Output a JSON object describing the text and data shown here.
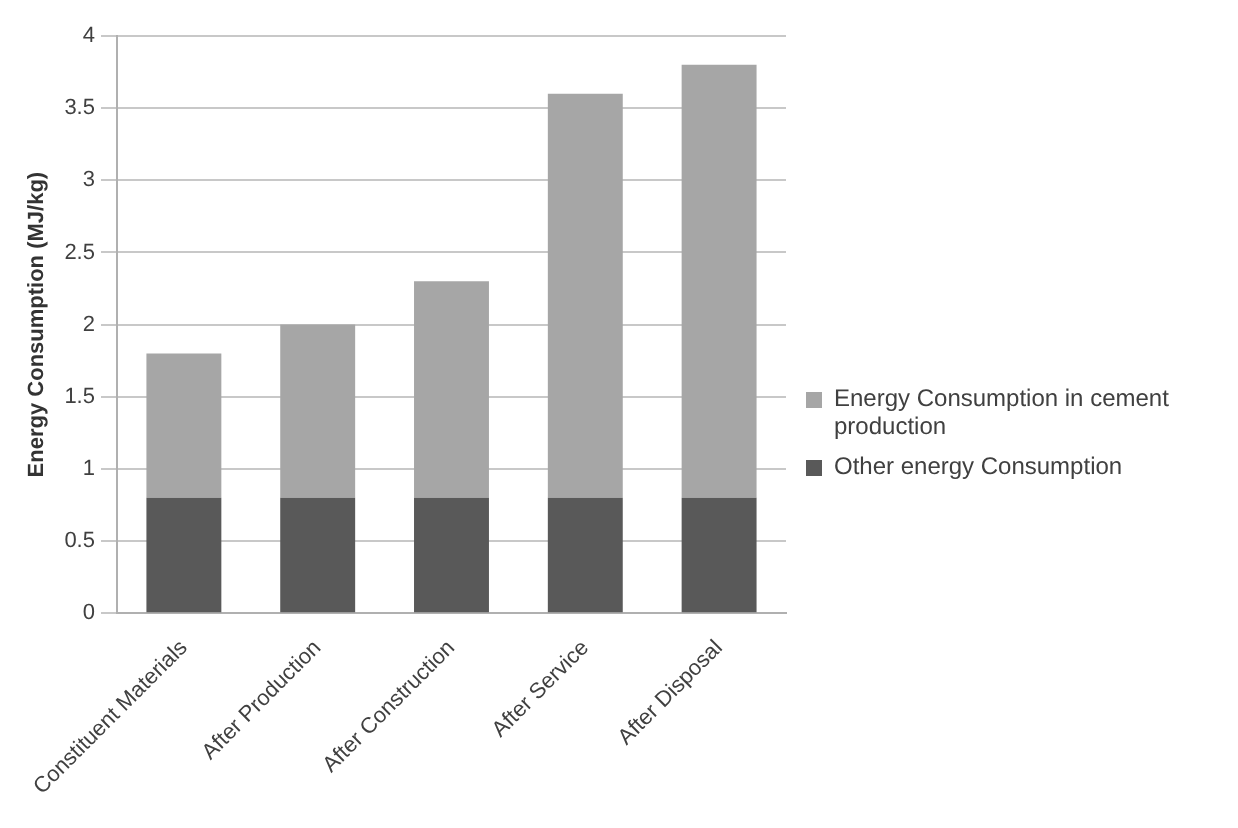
{
  "chart_data": {
    "type": "bar",
    "ylabel": "Energy Consumption (MJ/kg)",
    "categories": [
      "Constituent Materials",
      "After Production",
      "After Construction",
      "After Service",
      "After Disposal"
    ],
    "series": [
      {
        "name": "Other energy Consumption",
        "color": "#595959",
        "values": [
          0.8,
          0.8,
          0.8,
          0.8,
          0.8
        ]
      },
      {
        "name": "Energy Consumption in cement production",
        "color": "#a6a6a6",
        "values": [
          1.0,
          1.2,
          1.5,
          2.8,
          3.0
        ]
      }
    ],
    "stacked": true,
    "ylim": [
      0,
      4
    ],
    "yticks": [
      0,
      0.5,
      1,
      1.5,
      2,
      2.5,
      3,
      3.5,
      4
    ],
    "grid": "y",
    "legend": "right"
  }
}
